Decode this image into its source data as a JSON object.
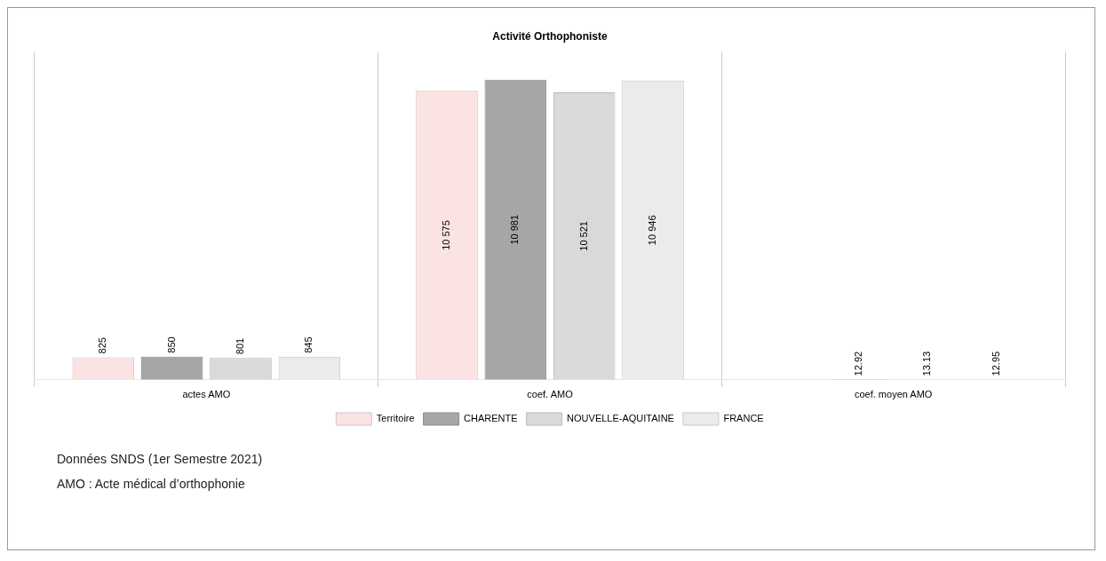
{
  "chart_data": {
    "type": "bar",
    "title": "Activité Orthophoniste",
    "categories": [
      "actes AMO",
      "coef. AMO",
      "coef. moyen AMO"
    ],
    "series": [
      {
        "name": "Territoire",
        "color": "#fbe3e3",
        "values": [
          825,
          10575,
          null
        ]
      },
      {
        "name": "CHARENTE",
        "color": "#a6a6a6",
        "values": [
          850,
          10981,
          12.92
        ]
      },
      {
        "name": "NOUVELLE-AQUITAINE",
        "color": "#d9d9d9",
        "values": [
          801,
          10521,
          13.13
        ]
      },
      {
        "name": "FRANCE",
        "color": "#ebebeb",
        "values": [
          845,
          10946,
          12.95
        ]
      }
    ],
    "data_labels": true,
    "grid": "x",
    "legend": "bottom",
    "annotations": [
      "Données SNDS (1er Semestre 2021)",
      "AMO : Acte médical d’orthophonie"
    ]
  }
}
